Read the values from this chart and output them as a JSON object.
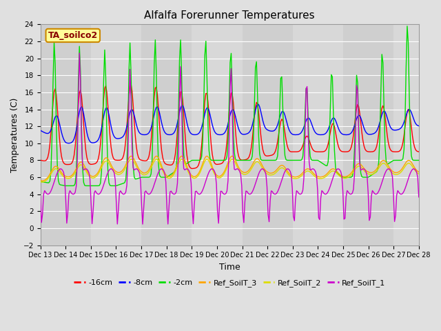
{
  "title": "Alfalfa Forerunner Temperatures",
  "xlabel": "Time",
  "ylabel": "Temperatures (C)",
  "annotation": "TA_soilco2",
  "ylim": [
    -2,
    24
  ],
  "yticks": [
    -2,
    0,
    2,
    4,
    6,
    8,
    10,
    12,
    14,
    16,
    18,
    20,
    22,
    24
  ],
  "x_labels": [
    "Dec 13",
    "Dec 14",
    "Dec 15",
    "Dec 16",
    "Dec 17",
    "Dec 18",
    "Dec 19",
    "Dec 20",
    "Dec 21",
    "Dec 22",
    "Dec 23",
    "Dec 24",
    "Dec 25",
    "Dec 26",
    "Dec 27",
    "Dec 28"
  ],
  "series_colors": {
    "-16cm": "#ff0000",
    "-8cm": "#0000ff",
    "-2cm": "#00dd00",
    "Ref_SoilT_3": "#ffa500",
    "Ref_SoilT_2": "#dddd00",
    "Ref_SoilT_1": "#cc00cc"
  },
  "background_color": "#e0e0e0",
  "plot_bg_color": "#d8d8d8",
  "title_fontsize": 11
}
